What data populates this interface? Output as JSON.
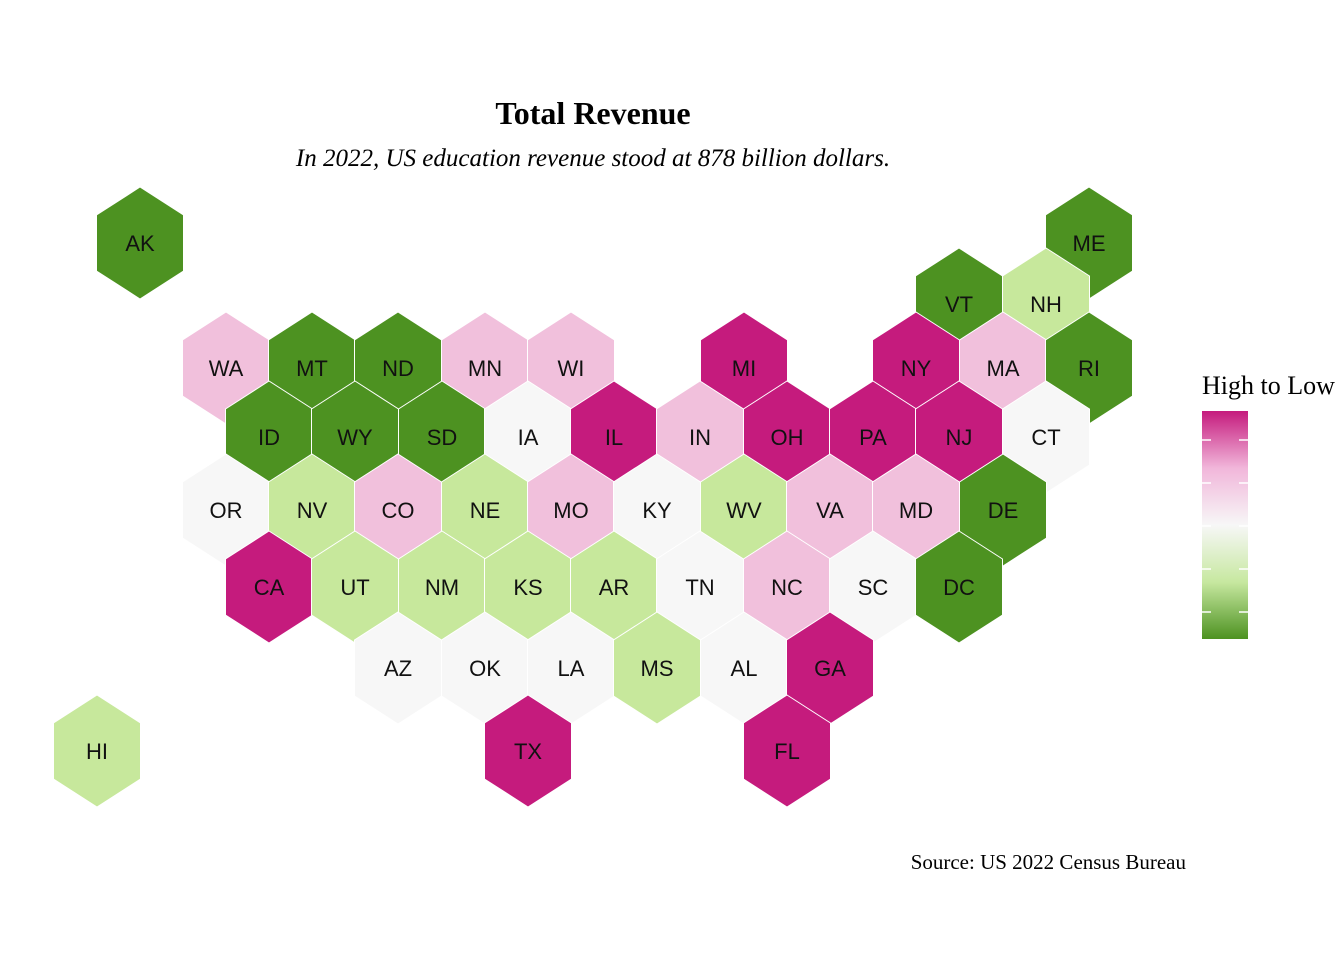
{
  "title": "Total Revenue",
  "subtitle": "In 2022, US education revenue stood at 878 billion dollars.",
  "caption": "Source: US 2022 Census Bureau",
  "legend": {
    "title": "High to Low",
    "colors": [
      "#c51b7d",
      "#f1b6da",
      "#f7f7f7",
      "#c7e8a0",
      "#4d9221"
    ]
  },
  "categories": {
    "high": "#c51b7d",
    "mid_high": "#f1c0dc",
    "mid": "#f7f7f7",
    "mid_low": "#c7e89c",
    "low": "#4d9221"
  },
  "states": [
    {
      "abbr": "AK",
      "level": "low"
    },
    {
      "abbr": "HI",
      "level": "mid_low"
    },
    {
      "abbr": "ME",
      "level": "low"
    },
    {
      "abbr": "VT",
      "level": "low"
    },
    {
      "abbr": "NH",
      "level": "mid_low"
    },
    {
      "abbr": "WA",
      "level": "mid_high"
    },
    {
      "abbr": "MT",
      "level": "low"
    },
    {
      "abbr": "ND",
      "level": "low"
    },
    {
      "abbr": "MN",
      "level": "mid_high"
    },
    {
      "abbr": "WI",
      "level": "mid_high"
    },
    {
      "abbr": "MI",
      "level": "high"
    },
    {
      "abbr": "NY",
      "level": "high"
    },
    {
      "abbr": "MA",
      "level": "mid_high"
    },
    {
      "abbr": "RI",
      "level": "low"
    },
    {
      "abbr": "ID",
      "level": "low"
    },
    {
      "abbr": "WY",
      "level": "low"
    },
    {
      "abbr": "SD",
      "level": "low"
    },
    {
      "abbr": "IA",
      "level": "mid"
    },
    {
      "abbr": "IL",
      "level": "high"
    },
    {
      "abbr": "IN",
      "level": "mid_high"
    },
    {
      "abbr": "OH",
      "level": "high"
    },
    {
      "abbr": "PA",
      "level": "high"
    },
    {
      "abbr": "NJ",
      "level": "high"
    },
    {
      "abbr": "CT",
      "level": "mid"
    },
    {
      "abbr": "OR",
      "level": "mid"
    },
    {
      "abbr": "NV",
      "level": "mid_low"
    },
    {
      "abbr": "CO",
      "level": "mid_high"
    },
    {
      "abbr": "NE",
      "level": "mid_low"
    },
    {
      "abbr": "MO",
      "level": "mid_high"
    },
    {
      "abbr": "KY",
      "level": "mid"
    },
    {
      "abbr": "WV",
      "level": "mid_low"
    },
    {
      "abbr": "VA",
      "level": "mid_high"
    },
    {
      "abbr": "MD",
      "level": "mid_high"
    },
    {
      "abbr": "DE",
      "level": "low"
    },
    {
      "abbr": "CA",
      "level": "high"
    },
    {
      "abbr": "UT",
      "level": "mid_low"
    },
    {
      "abbr": "NM",
      "level": "mid_low"
    },
    {
      "abbr": "KS",
      "level": "mid_low"
    },
    {
      "abbr": "AR",
      "level": "mid_low"
    },
    {
      "abbr": "TN",
      "level": "mid"
    },
    {
      "abbr": "NC",
      "level": "mid_high"
    },
    {
      "abbr": "SC",
      "level": "mid"
    },
    {
      "abbr": "DC",
      "level": "low"
    },
    {
      "abbr": "AZ",
      "level": "mid"
    },
    {
      "abbr": "OK",
      "level": "mid"
    },
    {
      "abbr": "LA",
      "level": "mid"
    },
    {
      "abbr": "MS",
      "level": "mid_low"
    },
    {
      "abbr": "AL",
      "level": "mid"
    },
    {
      "abbr": "GA",
      "level": "high"
    },
    {
      "abbr": "TX",
      "level": "high"
    },
    {
      "abbr": "FL",
      "level": "high"
    }
  ]
}
